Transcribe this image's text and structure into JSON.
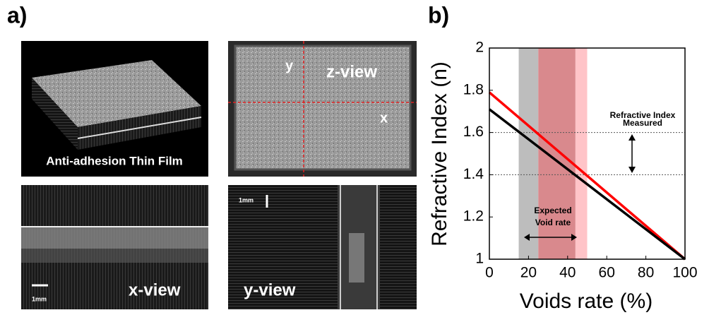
{
  "panel_a": {
    "label": "a)",
    "film_caption": "Anti-adhesion Thin Film",
    "z_view": {
      "y_axis": "y",
      "title": "z-view",
      "x_axis": "x"
    },
    "x_view": {
      "scale": "1mm",
      "title": "x-view"
    },
    "y_view": {
      "scale": "1mm",
      "title": "y-view"
    }
  },
  "chart_data": {
    "type": "line",
    "label": "b)",
    "xlabel": "Voids rate (%)",
    "ylabel": "Refractive Index (n)",
    "xlim": [
      0,
      100
    ],
    "xticks": [
      0,
      20,
      40,
      60,
      80,
      100
    ],
    "ylim": [
      1,
      2
    ],
    "yticks": [
      1,
      1.2,
      1.4,
      1.6,
      1.8,
      2
    ],
    "x": [
      0,
      100
    ],
    "series": [
      {
        "color": "#ff0000",
        "values": [
          1.79,
          1.0
        ]
      },
      {
        "color": "#000000",
        "values": [
          1.71,
          1.0
        ]
      }
    ],
    "bands": [
      {
        "range": [
          15,
          25
        ],
        "color": "#bdbdbd"
      },
      {
        "range": [
          25,
          44
        ],
        "color": "#d9898d"
      },
      {
        "range": [
          44,
          50
        ],
        "color": "#ffc4c8"
      }
    ],
    "hlines": [
      1.6,
      1.4
    ],
    "annotations": [
      [
        "Measured",
        "Refractive Index"
      ],
      [
        "Expected",
        "Void rate"
      ]
    ]
  }
}
